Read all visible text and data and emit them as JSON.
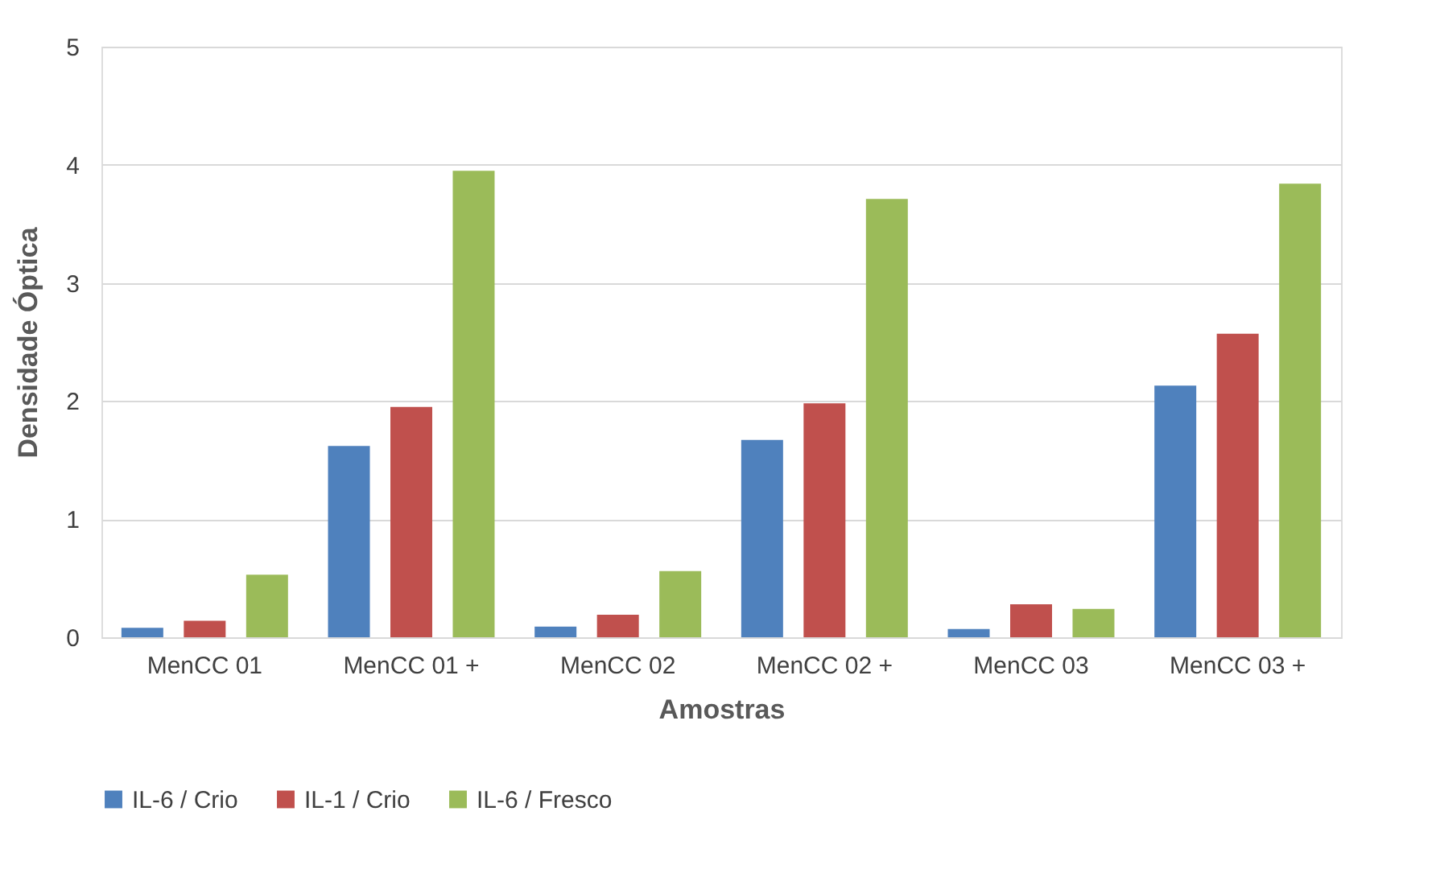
{
  "chart_data": {
    "type": "bar",
    "xlabel": "Amostras",
    "ylabel": "Densidade Óptica",
    "categories": [
      "MenCC 01",
      "MenCC 01 +",
      "MenCC 02",
      "MenCC 02 +",
      "MenCC 03",
      "MenCC 03 +"
    ],
    "series": [
      {
        "name": "IL-6 / Crio",
        "color": "#4f81bd",
        "values": [
          0.08,
          1.62,
          0.09,
          1.67,
          0.07,
          2.13
        ]
      },
      {
        "name": "IL-1 / Crio",
        "color": "#c0504d",
        "values": [
          0.14,
          1.95,
          0.19,
          1.98,
          0.28,
          2.57
        ]
      },
      {
        "name": "IL-6 / Fresco",
        "color": "#9bbb59",
        "values": [
          0.53,
          3.95,
          0.56,
          3.71,
          0.24,
          3.84
        ]
      }
    ],
    "ylim": [
      0,
      5
    ],
    "yticks": [
      0,
      1,
      2,
      3,
      4,
      5
    ],
    "grid": "y",
    "legend": "bottom"
  }
}
